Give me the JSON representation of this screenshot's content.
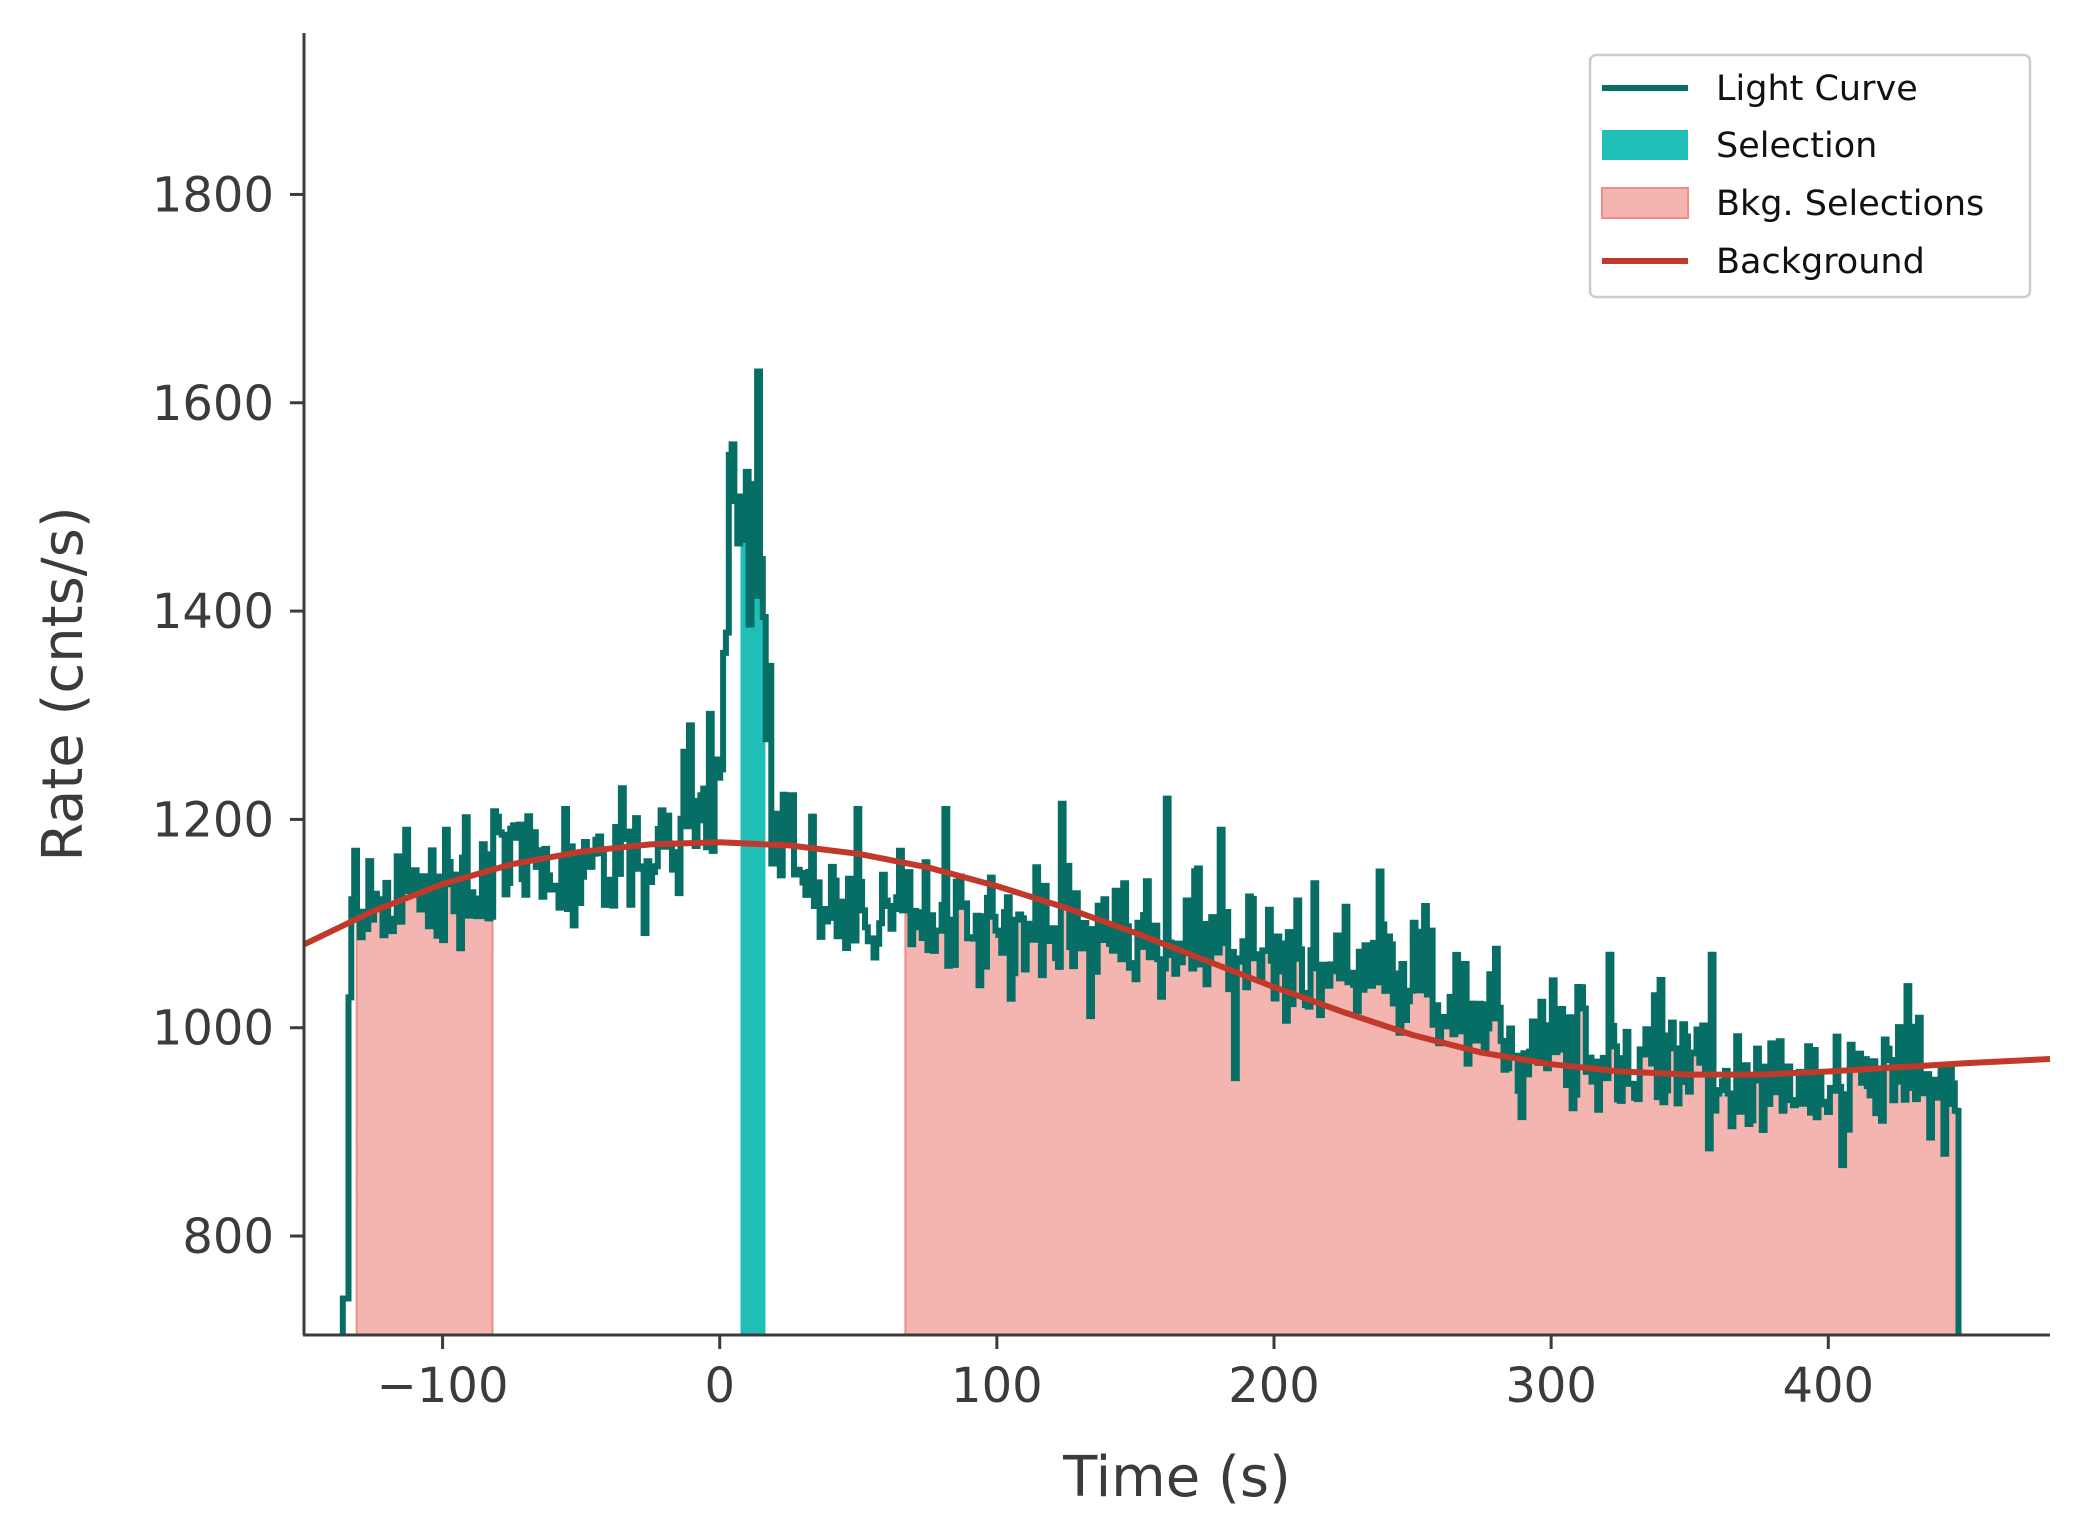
{
  "chart_data": {
    "type": "line",
    "title": "",
    "xlabel": "Time (s)",
    "ylabel": "Rate (cnts/s)",
    "xlim": [
      -150,
      480
    ],
    "ylim": [
      705,
      1955
    ],
    "x_ticks": [
      -100,
      0,
      100,
      200,
      300,
      400
    ],
    "x_tick_labels": [
      "−100",
      "0",
      "100",
      "200",
      "300",
      "400"
    ],
    "y_ticks": [
      800,
      1000,
      1200,
      1400,
      1600,
      1800
    ],
    "y_tick_labels": [
      "800",
      "1000",
      "1200",
      "1400",
      "1600",
      "1800"
    ],
    "grid": false,
    "legend_position": "top-right",
    "colors": {
      "light_curve": "#076e66",
      "selection": "#1fbfb7",
      "bkg_selection": "#f4b5b0",
      "bkg_selection_edge": "#ef8e86",
      "background": "#c0392b",
      "axis": "#3b3b3b"
    },
    "legend": [
      {
        "label": "Light Curve",
        "kind": "line",
        "color": "#076e66"
      },
      {
        "label": "Selection",
        "kind": "patch",
        "color": "#1fbfb7"
      },
      {
        "label": "Bkg. Selections",
        "kind": "patch",
        "color": "#f4b5b0"
      },
      {
        "label": "Background",
        "kind": "line",
        "color": "#c0392b"
      }
    ],
    "selection_interval": [
      7.5,
      16.5
    ],
    "bkg_selection_intervals": [
      [
        -131,
        -82
      ],
      [
        67,
        447
      ]
    ],
    "light_curve": {
      "start": -136,
      "end": 447,
      "bin_width": 1.024,
      "profile": [
        [
          -136,
          740
        ],
        [
          -133,
          1100
        ],
        [
          -130,
          1110
        ],
        [
          -120,
          1120
        ],
        [
          -100,
          1135
        ],
        [
          -80,
          1145
        ],
        [
          -60,
          1150
        ],
        [
          -40,
          1158
        ],
        [
          -20,
          1165
        ],
        [
          -8,
          1180
        ],
        [
          -3,
          1230
        ],
        [
          0,
          1300
        ],
        [
          3,
          1420
        ],
        [
          6,
          1480
        ],
        [
          8,
          1400
        ],
        [
          10,
          1460
        ],
        [
          12,
          1500
        ],
        [
          14,
          1420
        ],
        [
          16,
          1300
        ],
        [
          19,
          1220
        ],
        [
          24,
          1170
        ],
        [
          40,
          1125
        ],
        [
          60,
          1110
        ],
        [
          100,
          1100
        ],
        [
          140,
          1090
        ],
        [
          180,
          1080
        ],
        [
          200,
          1070
        ],
        [
          240,
          1045
        ],
        [
          280,
          1010
        ],
        [
          300,
          990
        ],
        [
          340,
          960
        ],
        [
          380,
          950
        ],
        [
          420,
          945
        ],
        [
          445,
          940
        ],
        [
          447,
          920
        ]
      ],
      "noise_sd": 32,
      "spikes": [
        [
          -132,
          1170
        ],
        [
          -127,
          1160
        ],
        [
          -113,
          1190
        ],
        [
          -99,
          1190
        ],
        [
          -73,
          1195
        ],
        [
          -56,
          1210
        ],
        [
          -36,
          1230
        ],
        [
          -13,
          1265
        ],
        [
          -1,
          1240
        ],
        [
          4,
          1560
        ],
        [
          7,
          1510
        ],
        [
          13,
          1630
        ],
        [
          15,
          1450
        ],
        [
          49,
          1210
        ],
        [
          81,
          1210
        ],
        [
          123,
          1215
        ],
        [
          161,
          1220
        ],
        [
          180,
          1190
        ],
        [
          238,
          1150
        ],
        [
          321,
          1070
        ],
        [
          358,
          1070
        ],
        [
          428,
          1040
        ],
        [
          447,
          920
        ]
      ]
    },
    "background_curve": {
      "x": [
        -150,
        -125,
        -100,
        -75,
        -50,
        -25,
        0,
        25,
        50,
        75,
        100,
        125,
        150,
        175,
        200,
        225,
        250,
        275,
        300,
        325,
        350,
        375,
        400,
        425,
        450,
        480
      ],
      "y": [
        1080,
        1112,
        1138,
        1157,
        1169,
        1176,
        1178,
        1175,
        1167,
        1154,
        1136,
        1115,
        1091,
        1065,
        1039,
        1015,
        993,
        976,
        965,
        958,
        955,
        955,
        958,
        962,
        966,
        970
      ]
    }
  }
}
